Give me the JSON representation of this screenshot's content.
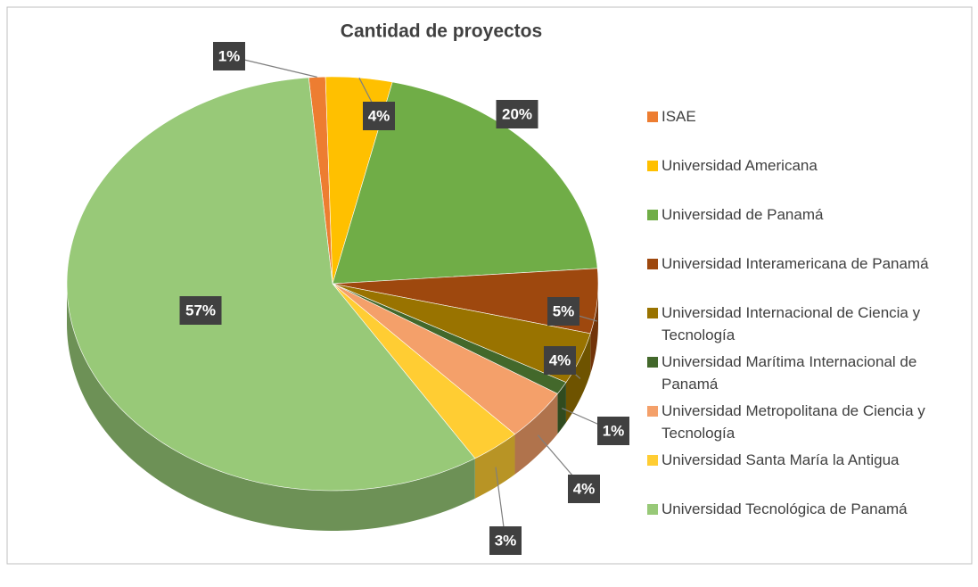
{
  "chart_data": {
    "type": "pie",
    "title": "Cantidad de proyectos",
    "categories": [
      "ISAE",
      "Universidad Americana",
      "Universidad de Panamá",
      "Universidad Interamericana de Panamá",
      "Universidad Internacional de Ciencia y Tecnología",
      "Universidad Marítima Internacional de Panamá",
      "Universidad Metropolitana de Ciencia y Tecnología",
      "Universidad Santa María la Antigua",
      "Universidad Tecnológica de Panamá"
    ],
    "values": [
      1,
      4,
      20,
      5,
      4,
      1,
      4,
      3,
      57
    ],
    "value_labels": [
      "1%",
      "4%",
      "20%",
      "5%",
      "4%",
      "1%",
      "4%",
      "3%",
      "57%"
    ],
    "colors": [
      "#ed7d31",
      "#ffc000",
      "#70ad47",
      "#9e480e",
      "#997300",
      "#43682b",
      "#f4a06a",
      "#ffcd33",
      "#98c978"
    ],
    "legend": "right"
  }
}
